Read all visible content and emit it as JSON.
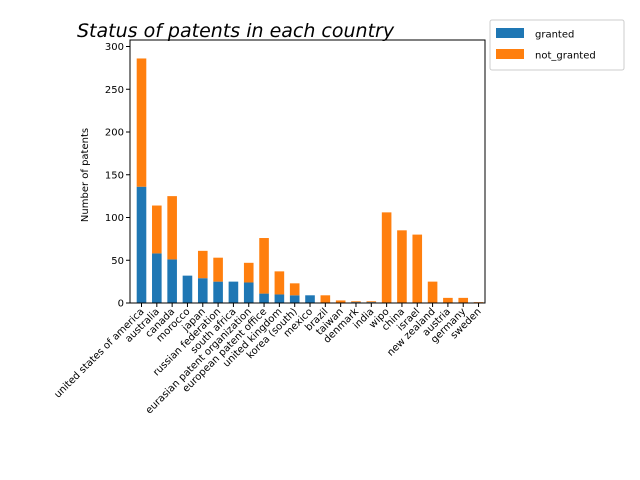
{
  "chart_data": {
    "type": "bar",
    "stacked": true,
    "title": "Status of patents in each country",
    "xlabel": "",
    "ylabel": "Number of patents",
    "ylim": [
      0,
      300
    ],
    "yticks": [
      0,
      50,
      100,
      150,
      200,
      250,
      300
    ],
    "legend": "top-right, outside plot",
    "categories": [
      "united states of america",
      "australia",
      "canada",
      "morocco",
      "japan",
      "russian federation",
      "south africa",
      "eurasian patent organization",
      "european patent office",
      "united kingdom",
      "korea (south)",
      "mexico",
      "brazil",
      "taiwan",
      "denmark",
      "india",
      "wipo",
      "china",
      "israel",
      "new zealand",
      "austria",
      "germany",
      "sweden"
    ],
    "series": [
      {
        "name": "granted",
        "color": "#1f77b4",
        "values": [
          136,
          58,
          51,
          32,
          29,
          25,
          25,
          24,
          11,
          10,
          9,
          9,
          0,
          0,
          1,
          1,
          0,
          0,
          0,
          0,
          0,
          0,
          0
        ]
      },
      {
        "name": "not_granted",
        "color": "#ff7f0e",
        "values": [
          150,
          56,
          74,
          0,
          32,
          28,
          0,
          23,
          65,
          27,
          14,
          0,
          9,
          3,
          1,
          1,
          106,
          85,
          80,
          25,
          6,
          6,
          1
        ]
      }
    ]
  }
}
